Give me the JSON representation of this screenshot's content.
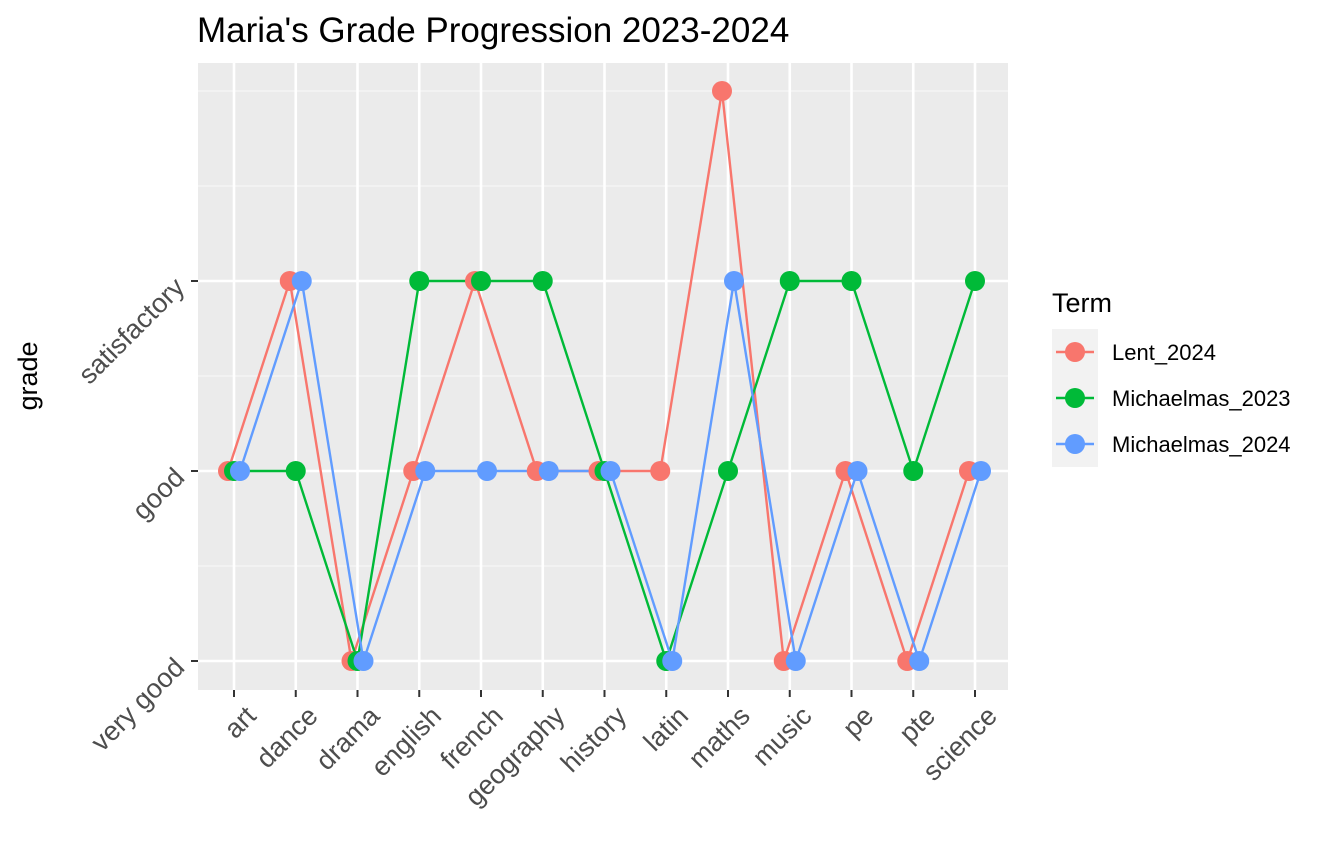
{
  "chart_data": {
    "type": "line",
    "title": "Maria's Grade Progression 2023-2024",
    "xlabel": "",
    "ylabel": "grade",
    "categories": [
      "art",
      "dance",
      "drama",
      "english",
      "french",
      "geography",
      "history",
      "latin",
      "maths",
      "music",
      "pe",
      "pte",
      "science"
    ],
    "y_levels": [
      "very good",
      "good",
      "satisfactory"
    ],
    "y_extra_level_note": "maths Lent_2024 point plotted one level above satisfactory (no tick label)",
    "legend_title": "Term",
    "legend_position": "right",
    "grid": true,
    "series": [
      {
        "name": "Lent_2024",
        "color": "#F8766D",
        "values": [
          1,
          2,
          0,
          1,
          2,
          1,
          1,
          1,
          3,
          0,
          1,
          0,
          1
        ]
      },
      {
        "name": "Michaelmas_2023",
        "color": "#00BA38",
        "values": [
          1,
          1,
          0,
          2,
          2,
          2,
          1,
          0,
          1,
          2,
          2,
          1,
          2
        ]
      },
      {
        "name": "Michaelmas_2024",
        "color": "#619CFF",
        "values": [
          1,
          2,
          0,
          1,
          1,
          1,
          1,
          0,
          2,
          0,
          1,
          0,
          1
        ]
      }
    ]
  }
}
